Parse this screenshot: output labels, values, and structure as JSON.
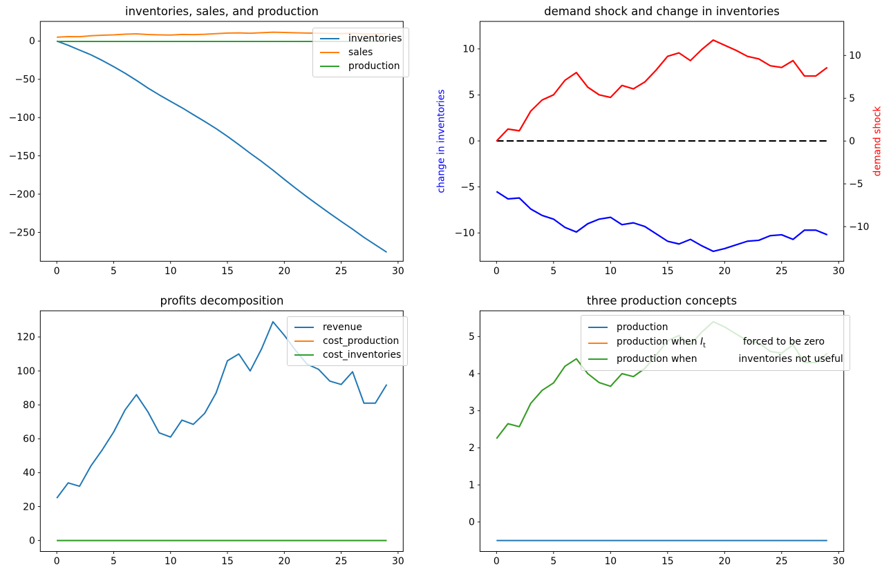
{
  "figure": {
    "background": "#ffffff"
  },
  "chart_data": [
    {
      "id": "inventories-sales-production",
      "type": "line",
      "title": "inventories, sales, and production",
      "x": [
        0,
        1,
        2,
        3,
        4,
        5,
        6,
        7,
        8,
        9,
        10,
        11,
        12,
        13,
        14,
        15,
        16,
        17,
        18,
        19,
        20,
        21,
        22,
        23,
        24,
        25,
        26,
        27,
        28,
        29
      ],
      "xlim": [
        -1.45,
        30.45
      ],
      "xticks": [
        {
          "v": 0,
          "label": "0"
        },
        {
          "v": 5,
          "label": "5"
        },
        {
          "v": 10,
          "label": "10"
        },
        {
          "v": 15,
          "label": "15"
        },
        {
          "v": 20,
          "label": "20"
        },
        {
          "v": 25,
          "label": "25"
        },
        {
          "v": 30,
          "label": "30"
        }
      ],
      "y_axes": [
        {
          "side": "left",
          "lim": [
            -287.75,
            25.65
          ],
          "ticks": [
            {
              "v": 0,
              "label": "0"
            },
            {
              "v": -50,
              "label": "−50"
            },
            {
              "v": -100,
              "label": "−100"
            },
            {
              "v": -150,
              "label": "−150"
            },
            {
              "v": -200,
              "label": "−200"
            },
            {
              "v": -250,
              "label": "−250"
            }
          ]
        }
      ],
      "grid": false,
      "legend_position": "upper right",
      "series": [
        {
          "name": "inventories",
          "color": "#1f77b4",
          "axis": "left",
          "values": [
            0,
            -5.5,
            -11.8,
            -18.0,
            -25.4,
            -33.5,
            -42.0,
            -51.4,
            -61.3,
            -70.3,
            -78.8,
            -87.1,
            -96.2,
            -105.1,
            -114.4,
            -124.5,
            -135.4,
            -146.6,
            -157.3,
            -168.7,
            -180.7,
            -192.4,
            -203.7,
            -214.5,
            -225.3,
            -235.6,
            -245.8,
            -256.5,
            -266.2,
            -275.9
          ]
        },
        {
          "name": "sales",
          "color": "#ff7f0e",
          "axis": "left",
          "values": [
            5.0,
            5.8,
            5.7,
            6.9,
            7.6,
            8.0,
            8.9,
            9.4,
            8.5,
            8.0,
            7.8,
            8.6,
            8.4,
            8.8,
            9.6,
            10.4,
            10.7,
            10.2,
            10.9,
            11.5,
            11.2,
            10.8,
            10.4,
            10.3,
            9.8,
            9.7,
            10.2,
            9.2,
            9.2,
            9.7
          ]
        },
        {
          "name": "production",
          "color": "#2ca02c",
          "axis": "left",
          "values": [
            -0.5,
            -0.5,
            -0.5,
            -0.5,
            -0.5,
            -0.5,
            -0.5,
            -0.5,
            -0.5,
            -0.5,
            -0.5,
            -0.5,
            -0.5,
            -0.5,
            -0.5,
            -0.5,
            -0.5,
            -0.5,
            -0.5,
            -0.5,
            -0.5,
            -0.5,
            -0.5,
            -0.5,
            -0.5,
            -0.5,
            -0.5,
            -0.5,
            -0.5,
            -0.5
          ]
        }
      ],
      "legend": {
        "entries": [
          {
            "color": "#1f77b4",
            "segments": [
              {
                "t": "inventories"
              }
            ]
          },
          {
            "color": "#ff7f0e",
            "segments": [
              {
                "t": "sales"
              }
            ]
          },
          {
            "color": "#2ca02c",
            "segments": [
              {
                "t": "production"
              }
            ]
          }
        ]
      }
    },
    {
      "id": "demand-shock-and-change-in-inventories",
      "type": "line",
      "title": "demand shock and change in inventories",
      "ylabel_left": {
        "text": "change in inventories",
        "color": "#0000ff"
      },
      "ylabel_right": {
        "text": "demand shock",
        "color": "#ff0000"
      },
      "x": [
        0,
        1,
        2,
        3,
        4,
        5,
        6,
        7,
        8,
        9,
        10,
        11,
        12,
        13,
        14,
        15,
        16,
        17,
        18,
        19,
        20,
        21,
        22,
        23,
        24,
        25,
        26,
        27,
        28,
        29
      ],
      "xlim": [
        -1.45,
        30.45
      ],
      "xticks": [
        {
          "v": 0,
          "label": "0"
        },
        {
          "v": 5,
          "label": "5"
        },
        {
          "v": 10,
          "label": "10"
        },
        {
          "v": 15,
          "label": "15"
        },
        {
          "v": 20,
          "label": "20"
        },
        {
          "v": 25,
          "label": "25"
        },
        {
          "v": 30,
          "label": "30"
        }
      ],
      "y_axes": [
        {
          "side": "left",
          "lim": [
            -13.08,
            12.99
          ],
          "ticks": [
            {
              "v": 10,
              "label": "10"
            },
            {
              "v": 5,
              "label": "5"
            },
            {
              "v": 0,
              "label": "0"
            },
            {
              "v": -5,
              "label": "−5"
            },
            {
              "v": -10,
              "label": "−10"
            }
          ]
        },
        {
          "side": "right",
          "lim": [
            -14.05,
            13.98
          ],
          "ticks": [
            {
              "v": 10,
              "label": "10"
            },
            {
              "v": 5,
              "label": "5"
            },
            {
              "v": 0,
              "label": "0"
            },
            {
              "v": -5,
              "label": "−5"
            },
            {
              "v": -10,
              "label": "−10"
            }
          ]
        }
      ],
      "grid": false,
      "series": [
        {
          "name": "zero-line",
          "color": "#000000",
          "axis": "left",
          "style": "dashed",
          "values": [
            0,
            0,
            0,
            0,
            0,
            0,
            0,
            0,
            0,
            0,
            0,
            0,
            0,
            0,
            0,
            0,
            0,
            0,
            0,
            0,
            0,
            0,
            0,
            0,
            0,
            0,
            0,
            0,
            0,
            0
          ]
        },
        {
          "name": "change-in-inventories",
          "color": "#0000ff",
          "axis": "left",
          "values": [
            -5.5,
            -6.3,
            -6.2,
            -7.4,
            -8.1,
            -8.5,
            -9.4,
            -9.9,
            -9.0,
            -8.5,
            -8.3,
            -9.1,
            -8.9,
            -9.3,
            -10.1,
            -10.9,
            -11.2,
            -10.7,
            -11.4,
            -12.0,
            -11.7,
            -11.3,
            -10.9,
            -10.8,
            -10.3,
            -10.2,
            -10.7,
            -9.7,
            -9.7,
            -10.2
          ]
        },
        {
          "name": "demand-shock",
          "color": "#ff0000",
          "axis": "right",
          "values": [
            0,
            1.4,
            1.2,
            3.5,
            4.8,
            5.4,
            7.1,
            8.0,
            6.3,
            5.4,
            5.1,
            6.5,
            6.1,
            6.9,
            8.3,
            9.9,
            10.3,
            9.4,
            10.7,
            11.8,
            11.2,
            10.6,
            9.9,
            9.6,
            8.8,
            8.6,
            9.4,
            7.6,
            7.6,
            8.6
          ]
        }
      ]
    },
    {
      "id": "profits-decomposition",
      "type": "line",
      "title": "profits decomposition",
      "x": [
        0,
        1,
        2,
        3,
        4,
        5,
        6,
        7,
        8,
        9,
        10,
        11,
        12,
        13,
        14,
        15,
        16,
        17,
        18,
        19,
        20,
        21,
        22,
        23,
        24,
        25,
        26,
        27,
        28,
        29
      ],
      "xlim": [
        -1.45,
        30.45
      ],
      "xticks": [
        {
          "v": 0,
          "label": "0"
        },
        {
          "v": 5,
          "label": "5"
        },
        {
          "v": 10,
          "label": "10"
        },
        {
          "v": 15,
          "label": "15"
        },
        {
          "v": 20,
          "label": "20"
        },
        {
          "v": 25,
          "label": "25"
        },
        {
          "v": 30,
          "label": "30"
        }
      ],
      "y_axes": [
        {
          "side": "left",
          "lim": [
            -6.45,
            135.45
          ],
          "ticks": [
            {
              "v": 0,
              "label": "0"
            },
            {
              "v": 20,
              "label": "20"
            },
            {
              "v": 40,
              "label": "40"
            },
            {
              "v": 60,
              "label": "60"
            },
            {
              "v": 80,
              "label": "80"
            },
            {
              "v": 100,
              "label": "100"
            },
            {
              "v": 120,
              "label": "120"
            }
          ]
        }
      ],
      "grid": false,
      "legend_position": "upper right",
      "series": [
        {
          "name": "revenue",
          "color": "#1f77b4",
          "axis": "left",
          "values": [
            25,
            34,
            32,
            44,
            53.5,
            64,
            77,
            86,
            76,
            63.5,
            61,
            71,
            68.5,
            75,
            87,
            106,
            110,
            100,
            113,
            129,
            121,
            112,
            104,
            101,
            94,
            92,
            99.5,
            81,
            81,
            92
          ]
        },
        {
          "name": "cost_production",
          "color": "#ff7f0e",
          "axis": "left",
          "values": [
            0,
            0,
            0,
            0,
            0,
            0,
            0,
            0,
            0,
            0,
            0,
            0,
            0,
            0,
            0,
            0,
            0,
            0,
            0,
            0,
            0,
            0,
            0,
            0,
            0,
            0,
            0,
            0,
            0,
            0
          ]
        },
        {
          "name": "cost_inventories",
          "color": "#2ca02c",
          "axis": "left",
          "values": [
            0,
            0,
            0,
            0,
            0,
            0,
            0,
            0,
            0,
            0,
            0,
            0,
            0,
            0,
            0,
            0,
            0,
            0,
            0,
            0,
            0,
            0,
            0,
            0,
            0,
            0,
            0,
            0,
            0,
            0
          ]
        }
      ],
      "legend": {
        "entries": [
          {
            "color": "#1f77b4",
            "segments": [
              {
                "t": "revenue"
              }
            ]
          },
          {
            "color": "#ff7f0e",
            "segments": [
              {
                "t": "cost_production"
              }
            ]
          },
          {
            "color": "#2ca02c",
            "segments": [
              {
                "t": "cost_inventories"
              }
            ]
          }
        ]
      }
    },
    {
      "id": "three-production-concepts",
      "type": "line",
      "title": "three production concepts",
      "x": [
        0,
        1,
        2,
        3,
        4,
        5,
        6,
        7,
        8,
        9,
        10,
        11,
        12,
        13,
        14,
        15,
        16,
        17,
        18,
        19,
        20,
        21,
        22,
        23,
        24,
        25,
        26,
        27,
        28,
        29
      ],
      "xlim": [
        -1.45,
        30.45
      ],
      "xticks": [
        {
          "v": 0,
          "label": "0"
        },
        {
          "v": 5,
          "label": "5"
        },
        {
          "v": 10,
          "label": "10"
        },
        {
          "v": 15,
          "label": "15"
        },
        {
          "v": 20,
          "label": "20"
        },
        {
          "v": 25,
          "label": "25"
        },
        {
          "v": 30,
          "label": "30"
        }
      ],
      "y_axes": [
        {
          "side": "left",
          "lim": [
            -0.795,
            5.695
          ],
          "ticks": [
            {
              "v": 0,
              "label": "0"
            },
            {
              "v": 1,
              "label": "1"
            },
            {
              "v": 2,
              "label": "2"
            },
            {
              "v": 3,
              "label": "3"
            },
            {
              "v": 4,
              "label": "4"
            },
            {
              "v": 5,
              "label": "5"
            }
          ]
        }
      ],
      "grid": false,
      "legend_position": "upper right",
      "series": [
        {
          "name": "production",
          "color": "#1f77b4",
          "axis": "left",
          "values": [
            -0.5,
            -0.5,
            -0.5,
            -0.5,
            -0.5,
            -0.5,
            -0.5,
            -0.5,
            -0.5,
            -0.5,
            -0.5,
            -0.5,
            -0.5,
            -0.5,
            -0.5,
            -0.5,
            -0.5,
            -0.5,
            -0.5,
            -0.5,
            -0.5,
            -0.5,
            -0.5,
            -0.5,
            -0.5,
            -0.5,
            -0.5,
            -0.5,
            -0.5,
            -0.5
          ]
        },
        {
          "name": "production-when-inventories-forced-to-zero",
          "color": "#ff7f0e",
          "axis": "left",
          "values": [
            2.25,
            2.65,
            2.57,
            3.2,
            3.55,
            3.75,
            4.2,
            4.4,
            4.0,
            3.76,
            3.66,
            4.0,
            3.92,
            4.14,
            4.5,
            4.89,
            5.03,
            4.78,
            5.12,
            5.4,
            5.26,
            5.07,
            4.89,
            4.83,
            4.6,
            4.55,
            4.78,
            4.3,
            4.3,
            4.55
          ]
        },
        {
          "name": "production-when-inventories-not-useful",
          "color": "#2ca02c",
          "axis": "left",
          "values": [
            2.25,
            2.65,
            2.57,
            3.2,
            3.55,
            3.75,
            4.2,
            4.4,
            4.0,
            3.76,
            3.66,
            4.0,
            3.92,
            4.14,
            4.5,
            4.89,
            5.03,
            4.78,
            5.12,
            5.4,
            5.26,
            5.07,
            4.89,
            4.83,
            4.6,
            4.55,
            4.78,
            4.3,
            4.3,
            4.55
          ]
        }
      ],
      "legend": {
        "entries": [
          {
            "color": "#1f77b4",
            "segments": [
              {
                "t": "production"
              }
            ]
          },
          {
            "color": "#ff7f0e",
            "segments": [
              {
                "t": "production when "
              },
              {
                "t": "I",
                "style": "math-italic"
              },
              {
                "t": "t",
                "style": "math-sub"
              },
              {
                "t": "",
                "gap": 54
              },
              {
                "t": "forced to be zero"
              }
            ]
          },
          {
            "color": "#2ca02c",
            "segments": [
              {
                "t": "production when"
              },
              {
                "t": "",
                "gap": 60
              },
              {
                "t": "inventories not useful"
              }
            ]
          }
        ]
      }
    }
  ]
}
